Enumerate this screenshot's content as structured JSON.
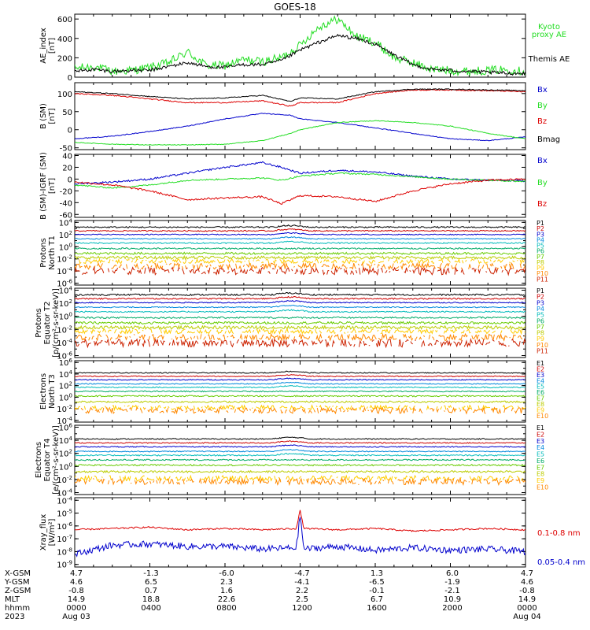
{
  "title": "GOES-18",
  "colors": {
    "black": "#000000",
    "green": "#22dd22",
    "red": "#dd0000",
    "blue": "#0000cc",
    "p": [
      "#000000",
      "#cc0000",
      "#0000cc",
      "#0088dd",
      "#00bbbb",
      "#00aa66",
      "#66cc00",
      "#bbcc00",
      "#ffcc00",
      "#ff8800",
      "#cc2200"
    ]
  },
  "chart_data": [
    {
      "type": "line",
      "id": "ae",
      "ylabel": [
        "AE_index",
        "[nT]"
      ],
      "ylim": [
        0,
        650
      ],
      "yticks": [
        "0",
        "200",
        "400",
        "600"
      ],
      "log": false,
      "legend": [
        "Kyoto",
        "proxy AE",
        "Themis AE"
      ],
      "series": [
        {
          "name": "Kyoto proxy AE",
          "color": "#22dd22",
          "x": [
            0,
            1,
            2,
            3,
            4,
            5,
            6,
            7,
            8,
            9,
            10,
            11,
            12,
            13,
            14,
            15,
            16,
            17,
            18,
            19,
            20,
            21,
            22,
            23,
            24
          ],
          "y": [
            90,
            110,
            60,
            70,
            100,
            150,
            260,
            120,
            120,
            180,
            160,
            200,
            330,
            520,
            600,
            420,
            360,
            200,
            150,
            80,
            70,
            60,
            70,
            80,
            60
          ],
          "noise": 45
        },
        {
          "name": "Themis AE",
          "color": "#000000",
          "x": [
            0,
            1,
            2,
            3,
            4,
            5,
            6,
            7,
            8,
            9,
            10,
            11,
            12,
            13,
            14,
            15,
            16,
            17,
            18,
            19,
            20,
            21,
            22,
            23,
            24
          ],
          "y": [
            60,
            80,
            60,
            70,
            70,
            110,
            150,
            110,
            100,
            130,
            130,
            170,
            280,
            360,
            430,
            400,
            340,
            230,
            130,
            80,
            70,
            60,
            50,
            40,
            40
          ],
          "noise": 18
        }
      ]
    },
    {
      "type": "line",
      "id": "bsm",
      "ylabel": [
        "B (SM)",
        "[nT]"
      ],
      "ylim": [
        -55,
        130
      ],
      "yticks": [
        "-50",
        "0",
        "50",
        "100"
      ],
      "log": false,
      "legend": [
        "Bx",
        "By",
        "Bz",
        "Bmag"
      ],
      "series": [
        {
          "name": "Bx",
          "color": "#0000cc",
          "x": [
            0,
            2,
            4,
            6,
            8,
            10,
            11.5,
            12,
            14,
            16,
            18,
            20,
            22,
            24
          ],
          "y": [
            -25,
            -18,
            -5,
            10,
            30,
            45,
            40,
            30,
            20,
            5,
            -10,
            -25,
            -30,
            -20
          ],
          "noise": 1
        },
        {
          "name": "By",
          "color": "#22dd22",
          "x": [
            0,
            2,
            4,
            6,
            8,
            10,
            11.5,
            12,
            14,
            16,
            18,
            20,
            22,
            24
          ],
          "y": [
            -35,
            -40,
            -42,
            -42,
            -40,
            -30,
            -10,
            0,
            20,
            25,
            20,
            10,
            -10,
            -25
          ],
          "noise": 1
        },
        {
          "name": "Bz",
          "color": "#dd0000",
          "x": [
            0,
            2,
            4,
            6,
            8,
            10,
            11.5,
            12,
            14,
            16,
            18,
            20,
            22,
            24
          ],
          "y": [
            100,
            95,
            85,
            75,
            75,
            80,
            65,
            75,
            75,
            100,
            110,
            110,
            108,
            105
          ],
          "noise": 1.5
        },
        {
          "name": "Bmag",
          "color": "#000000",
          "x": [
            0,
            2,
            4,
            6,
            8,
            10,
            11.5,
            12,
            14,
            16,
            18,
            20,
            22,
            24
          ],
          "y": [
            105,
            100,
            92,
            85,
            88,
            95,
            78,
            88,
            85,
            105,
            112,
            112,
            110,
            108
          ],
          "noise": 1.2
        }
      ]
    },
    {
      "type": "line",
      "id": "bigrf",
      "ylabel": [
        "B (SM)-IGRF (SM)",
        "[nT]"
      ],
      "ylim": [
        -65,
        42
      ],
      "yticks": [
        "-60",
        "-40",
        "-20",
        "0",
        "20",
        "40"
      ],
      "log": false,
      "legend": [
        "Bx",
        "By",
        "Bz"
      ],
      "series": [
        {
          "name": "Bx",
          "color": "#0000cc",
          "x": [
            0,
            2,
            4,
            6,
            8,
            10,
            11,
            12,
            14,
            16,
            18,
            20,
            22,
            24
          ],
          "y": [
            -8,
            -5,
            0,
            10,
            20,
            28,
            20,
            10,
            15,
            12,
            5,
            0,
            -2,
            -3
          ],
          "noise": 1.5
        },
        {
          "name": "By",
          "color": "#22dd22",
          "x": [
            0,
            2,
            4,
            6,
            8,
            10,
            11,
            12,
            14,
            16,
            18,
            20,
            22,
            24
          ],
          "y": [
            -10,
            -15,
            -10,
            -2,
            0,
            2,
            -2,
            5,
            10,
            8,
            4,
            0,
            -2,
            -4
          ],
          "noise": 1.2
        },
        {
          "name": "Bz",
          "color": "#dd0000",
          "x": [
            0,
            2,
            4,
            6,
            8,
            10,
            11,
            12,
            14,
            16,
            18,
            20,
            22,
            24
          ],
          "y": [
            -5,
            -10,
            -20,
            -35,
            -32,
            -30,
            -42,
            -28,
            -30,
            -38,
            -20,
            -8,
            -2,
            0
          ],
          "noise": 1.5
        }
      ]
    },
    {
      "type": "line",
      "id": "pn",
      "ylabel": [
        "Protons",
        "North T1"
      ],
      "ylim": [
        -6.3,
        4.3
      ],
      "yticks": [
        "10^4",
        "10^2",
        "10^0",
        "10^-2",
        "10^-4",
        "10^-6"
      ],
      "log": true,
      "legend": [
        "P1",
        "P2",
        "P3",
        "P4",
        "P5",
        "P6",
        "P7",
        "P8",
        "P9",
        "P10",
        "P11"
      ],
      "levels": [
        3.2,
        2.6,
        2.0,
        1.3,
        0.6,
        -0.3,
        -1.1,
        -1.8,
        -2.4,
        -3.2,
        -4.0
      ],
      "noise": [
        0.12,
        0.1,
        0.08,
        0.08,
        0.1,
        0.12,
        0.18,
        0.25,
        0.35,
        0.5,
        0.6
      ]
    },
    {
      "type": "line",
      "id": "pe",
      "ylabel": [
        "Protons",
        "Equator T2",
        "[p/(cm²-s-sr-keV)]"
      ],
      "ylim": [
        -6.3,
        4.3
      ],
      "yticks": [
        "10^4",
        "10^2",
        "10^0",
        "10^-2",
        "10^-4",
        "10^-6"
      ],
      "log": true,
      "legend": [
        "P1",
        "P2",
        "P3",
        "P4",
        "P5",
        "P6",
        "P7",
        "P8",
        "P9",
        "P10",
        "P11"
      ],
      "levels": [
        3.3,
        2.7,
        2.1,
        1.4,
        0.7,
        -0.2,
        -1.0,
        -1.7,
        -2.3,
        -3.2,
        -4.1
      ],
      "noise": [
        0.12,
        0.1,
        0.08,
        0.08,
        0.1,
        0.12,
        0.18,
        0.25,
        0.35,
        0.5,
        0.6
      ]
    },
    {
      "type": "line",
      "id": "en",
      "ylabel": [
        "Electrons",
        "North T3"
      ],
      "ylim": [
        -4.3,
        6.3
      ],
      "yticks": [
        "10^6",
        "10^4",
        "10^2",
        "10^0",
        "10^-2",
        "10^-4"
      ],
      "log": true,
      "legend": [
        "E1",
        "E2",
        "E3",
        "E4",
        "E5",
        "E6",
        "E7",
        "E8",
        "E9",
        "E10"
      ],
      "levels": [
        4.2,
        3.6,
        3.0,
        2.3,
        1.7,
        1.0,
        0.2,
        -0.8,
        -1.8,
        -2.3
      ],
      "noise": [
        0.08,
        0.08,
        0.08,
        0.08,
        0.1,
        0.1,
        0.12,
        0.15,
        0.4,
        0.5
      ]
    },
    {
      "type": "line",
      "id": "ee",
      "ylabel": [
        "Electrons",
        "Equator T4",
        "[e/(cm²-s-sr-keV)]"
      ],
      "ylim": [
        -4.3,
        6.3
      ],
      "yticks": [
        "10^6",
        "10^4",
        "10^2",
        "10^0",
        "10^-2",
        "10^-4"
      ],
      "log": true,
      "legend": [
        "E1",
        "E2",
        "E3",
        "E4",
        "E5",
        "E6",
        "E7",
        "E8",
        "E9",
        "E10"
      ],
      "levels": [
        4.2,
        3.6,
        3.0,
        2.3,
        1.7,
        1.0,
        0.2,
        -0.8,
        -1.8,
        -2.3
      ],
      "noise": [
        0.08,
        0.08,
        0.08,
        0.08,
        0.1,
        0.1,
        0.12,
        0.15,
        0.4,
        0.5
      ]
    },
    {
      "type": "line",
      "id": "xray",
      "ylabel": [
        "Xray_flux",
        "[W/m²]"
      ],
      "ylim": [
        -9.2,
        -3.8
      ],
      "yticks": [
        "10^-4",
        "10^-5",
        "10^-6",
        "10^-7",
        "10^-8",
        "10^-9"
      ],
      "log": true,
      "legend": [
        "0.1-0.8 nm",
        "0.05-0.4 nm"
      ],
      "series": [
        {
          "name": "0.1-0.8 nm",
          "color": "#dd0000",
          "x": [
            0,
            2,
            4,
            6,
            8,
            10,
            11.8,
            12,
            12.2,
            14,
            16,
            18,
            20,
            22,
            24
          ],
          "y": [
            -6.3,
            -6.2,
            -6.1,
            -6.3,
            -6.2,
            -6.3,
            -6.2,
            -4.8,
            -6.2,
            -6.3,
            -6.2,
            -6.4,
            -6.3,
            -6.2,
            -6.3
          ],
          "noise": 0.06
        },
        {
          "name": "0.05-0.4 nm",
          "color": "#0000cc",
          "x": [
            0,
            2,
            4,
            6,
            8,
            10,
            11.8,
            12,
            12.2,
            14,
            16,
            18,
            20,
            22,
            24
          ],
          "y": [
            -8.2,
            -7.5,
            -7.4,
            -7.6,
            -7.6,
            -7.8,
            -7.7,
            -5.2,
            -7.8,
            -7.6,
            -7.9,
            -7.7,
            -7.9,
            -7.8,
            -8.0
          ],
          "noise": 0.25
        }
      ]
    }
  ],
  "axis_table": {
    "rows": [
      {
        "label": "X-GSM",
        "values": [
          "4.7",
          "-1.3",
          "-6.0",
          "-4.7",
          "1.3",
          "6.0",
          "4.7"
        ]
      },
      {
        "label": "Y-GSM",
        "values": [
          "4.6",
          "6.5",
          "2.3",
          "-4.1",
          "-6.5",
          "-1.9",
          "4.6"
        ]
      },
      {
        "label": "Z-GSM",
        "values": [
          "-0.8",
          "0.7",
          "1.6",
          "2.2",
          "-0.1",
          "-2.1",
          "-0.8"
        ]
      },
      {
        "label": "MLT",
        "values": [
          "14.9",
          "18.8",
          "22.6",
          "2.5",
          "6.7",
          "10.9",
          "14.9"
        ]
      },
      {
        "label": "hhmm",
        "values": [
          "0000",
          "0400",
          "0800",
          "1200",
          "1600",
          "2000",
          "0000"
        ]
      },
      {
        "label": "2023",
        "values": [
          "Aug 03",
          "",
          "",
          "",
          "",
          "",
          "Aug 04"
        ]
      }
    ]
  }
}
